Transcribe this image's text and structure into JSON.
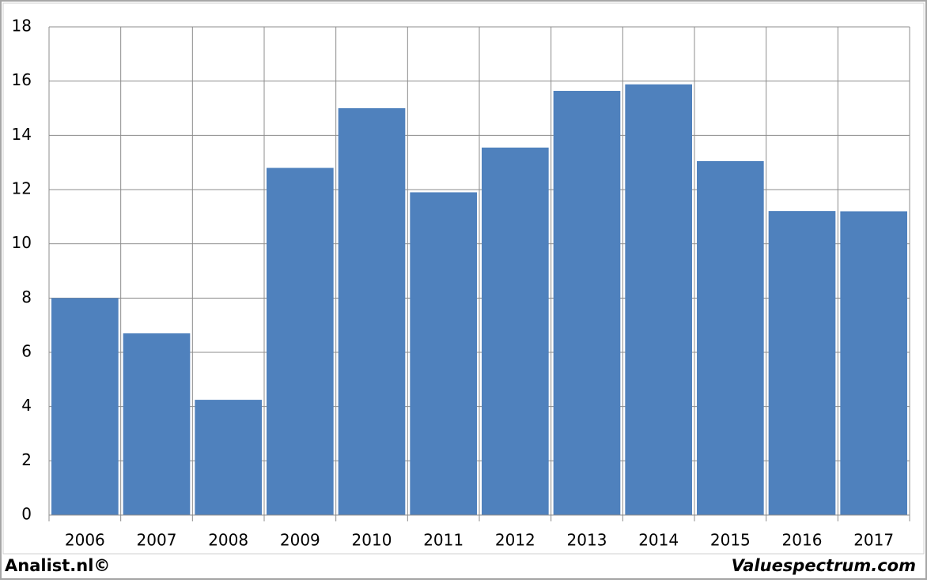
{
  "chart_data": {
    "type": "bar",
    "categories": [
      "2006",
      "2007",
      "2008",
      "2009",
      "2010",
      "2011",
      "2012",
      "2013",
      "2014",
      "2015",
      "2016",
      "2017"
    ],
    "values": [
      8.0,
      6.7,
      4.25,
      12.8,
      15.0,
      11.9,
      13.55,
      15.64,
      15.88,
      13.05,
      11.21,
      11.2
    ],
    "color": "#4f81bd",
    "ylim": [
      0,
      18
    ],
    "yticks": [
      0,
      2,
      4,
      6,
      8,
      10,
      12,
      14,
      16,
      18
    ],
    "grid": true,
    "footer_left": "Analist.nl©",
    "footer_right": "Valuespectrum.com"
  }
}
